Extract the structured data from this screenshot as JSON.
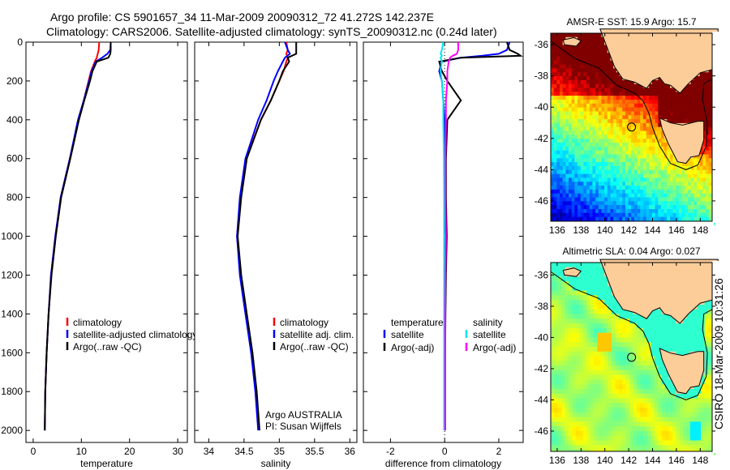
{
  "title": {
    "line1": "Argo profile: CS 5901657_34 11-Mar-2009 20090312_72 41.272S 142.237E",
    "line2": "Climatology: CARS2006. Satellite-adjusted climatology: synTS_20090312.nc (0.24d later)"
  },
  "colors": {
    "climatology": "#ff0000",
    "satellite": "#0000ff",
    "argo": "#000000",
    "sal_satellite": "#00e5ee",
    "sal_argo": "#ff00ff",
    "land": "#fccc99"
  },
  "credit": "CSIRO 18-Mar-2009 10:31:26",
  "chart_data": [
    {
      "type": "line",
      "id": "temperature",
      "xlabel": "temperature",
      "ylabel": "",
      "xlim": [
        -1.5,
        32
      ],
      "ylim": [
        2062,
        0
      ],
      "xticks": [
        0,
        10,
        20,
        30
      ],
      "yticks": [
        0,
        200,
        400,
        600,
        800,
        1000,
        1200,
        1400,
        1600,
        1800,
        2000
      ],
      "legend": {
        "position": "center-left",
        "entries": [
          "climatology",
          "satellite-adjusted climatology",
          "Argo(..raw -QC)"
        ]
      },
      "depth": [
        0,
        40,
        60,
        80,
        100,
        150,
        200,
        300,
        400,
        600,
        800,
        1000,
        1200,
        1400,
        1600,
        1800,
        2000
      ],
      "series": [
        {
          "name": "climatology",
          "color": "#ff0000",
          "values": [
            13.7,
            13.6,
            13.4,
            13.2,
            12.8,
            12.0,
            11.5,
            10.5,
            9.4,
            7.6,
            5.7,
            4.6,
            3.7,
            3.2,
            2.8,
            2.5,
            2.4
          ]
        },
        {
          "name": "satellite-adjusted climatology",
          "color": "#0000ff",
          "values": [
            16.1,
            16.0,
            15.4,
            14.3,
            13.0,
            12.1,
            11.6,
            10.5,
            9.3,
            7.6,
            5.7,
            4.6,
            3.7,
            3.2,
            2.8,
            2.5,
            2.4
          ]
        },
        {
          "name": "Argo(..raw -QC)",
          "color": "#000000",
          "values": [
            16.1,
            16.1,
            16.0,
            15.6,
            13.2,
            12.3,
            11.8,
            10.6,
            9.5,
            7.7,
            5.8,
            4.7,
            3.8,
            3.2,
            2.8,
            2.5,
            2.4
          ]
        }
      ]
    },
    {
      "type": "line",
      "id": "salinity",
      "xlabel": "salinity",
      "xlim": [
        33.8,
        36.1
      ],
      "ylim": [
        2062,
        0
      ],
      "xticks": [
        34,
        34.5,
        35,
        35.5,
        36
      ],
      "xticklabels": [
        "34",
        "34.5",
        "35",
        "35.5",
        "36"
      ],
      "legend": {
        "position": "center-right",
        "entries": [
          "climatology",
          "satellite adj. clim.",
          "Argo(..raw -QC)"
        ]
      },
      "annotation": [
        "Argo AUSTRALIA",
        "PI: Susan Wijffels"
      ],
      "depth": [
        0,
        40,
        60,
        80,
        100,
        150,
        200,
        300,
        400,
        600,
        800,
        1000,
        1200,
        1400,
        1600,
        1800,
        2000
      ],
      "series": [
        {
          "name": "climatology",
          "color": "#ff0000",
          "values": [
            35.1,
            35.12,
            35.1,
            35.12,
            35.1,
            35.06,
            35.0,
            34.88,
            34.74,
            34.53,
            34.45,
            34.4,
            34.45,
            34.53,
            34.61,
            34.67,
            34.71
          ]
        },
        {
          "name": "satellite adj. clim.",
          "color": "#0000ff",
          "values": [
            35.08,
            35.12,
            35.15,
            35.08,
            35.05,
            34.98,
            34.92,
            34.82,
            34.7,
            34.52,
            34.44,
            34.4,
            34.44,
            34.52,
            34.6,
            34.66,
            34.7
          ]
        },
        {
          "name": "Argo(..raw -QC)",
          "color": "#000000",
          "values": [
            35.24,
            35.24,
            35.24,
            35.12,
            35.14,
            35.05,
            35.0,
            34.88,
            34.74,
            34.54,
            34.46,
            34.41,
            34.46,
            34.54,
            34.62,
            34.68,
            34.72
          ]
        }
      ]
    },
    {
      "type": "line",
      "id": "difference",
      "xlabel": "difference from climatology",
      "xlim": [
        -3,
        2.9
      ],
      "ylim": [
        2062,
        0
      ],
      "xticks": [
        -2,
        0,
        2
      ],
      "legend": {
        "position": "center",
        "groups": [
          {
            "title": "temperature",
            "entries": [
              "satellite",
              "Argo(-adj)"
            ]
          },
          {
            "title": "salinity",
            "entries": [
              "satellite",
              "Argo(-adj)"
            ]
          }
        ]
      },
      "depth": [
        0,
        40,
        60,
        70,
        80,
        100,
        150,
        200,
        300,
        400,
        600,
        800,
        1000,
        1200,
        1400,
        1600,
        1800,
        2000
      ],
      "series": [
        {
          "name": "temperature satellite",
          "color": "#0000ff",
          "values": [
            2.4,
            2.3,
            2.0,
            1.4,
            0.6,
            -0.1,
            -0.2,
            -0.1,
            -0.05,
            0.0,
            0.0,
            0.0,
            0.05,
            0.03,
            0.02,
            0.02,
            0.02,
            0.02
          ]
        },
        {
          "name": "temperature Argo(-adj)",
          "color": "#000000",
          "values": [
            2.3,
            2.4,
            2.7,
            2.8,
            0.6,
            -0.2,
            -0.1,
            0.1,
            0.6,
            0.1,
            0.05,
            0.05,
            0.08,
            0.05,
            0.03,
            0.02,
            0.02,
            0.02
          ]
        },
        {
          "name": "salinity satellite",
          "color": "#00e5ee",
          "values": [
            -0.05,
            -0.1,
            -0.15,
            -0.1,
            -0.15,
            -0.1,
            -0.15,
            -0.1,
            -0.05,
            -0.05,
            -0.03,
            -0.02,
            -0.02,
            -0.02,
            -0.02,
            -0.02,
            -0.02,
            -0.02
          ]
        },
        {
          "name": "salinity Argo(-adj)",
          "color": "#ff00ff",
          "values": [
            0.5,
            0.5,
            0.45,
            0.3,
            0.2,
            0.15,
            0.1,
            0.1,
            0.05,
            0.05,
            0.03,
            0.03,
            0.05,
            0.03,
            0.02,
            0.02,
            0.02,
            0.02
          ]
        }
      ]
    },
    {
      "type": "heatmap",
      "id": "sst-map",
      "title": "AMSR-E SST: 15.9 Argo: 15.7",
      "xlim": [
        135.46,
        149.0
      ],
      "ylim": [
        -47.3,
        -35.27
      ],
      "xticks": [
        136,
        138,
        140,
        142,
        144,
        146,
        148
      ],
      "yticks": [
        -36,
        -38,
        -40,
        -42,
        -44,
        -46
      ],
      "marker": {
        "lon": 142.237,
        "lat": -41.272
      }
    },
    {
      "type": "heatmap",
      "id": "sla-map",
      "title": "Altimetric SLA: 0.04 Argo: 0.027",
      "xlim": [
        135.46,
        149.0
      ],
      "ylim": [
        -47.3,
        -35.2
      ],
      "xticks": [
        136,
        138,
        140,
        142,
        144,
        146,
        148
      ],
      "yticks": [
        -36,
        -38,
        -40,
        -42,
        -44,
        -46
      ],
      "marker": {
        "lon": 142.237,
        "lat": -41.272
      }
    }
  ]
}
